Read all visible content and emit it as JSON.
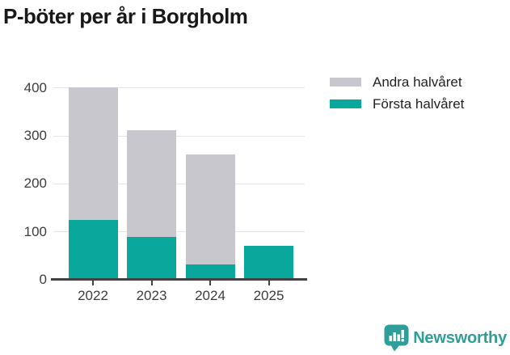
{
  "title": "P-böter per år i Borgholm",
  "chart_data": {
    "type": "bar",
    "stacked": true,
    "title": "P-böter per år i Borgholm",
    "categories": [
      "2022",
      "2023",
      "2024",
      "2025"
    ],
    "series": [
      {
        "name": "Första halvåret",
        "color": "#0aa79c",
        "values": [
          125,
          90,
          32,
          71
        ]
      },
      {
        "name": "Andra halvåret",
        "color": "#c9c7ce",
        "values": [
          276,
          222,
          229,
          0
        ]
      }
    ],
    "totals": [
      401,
      312,
      261,
      71
    ],
    "xlabel": "",
    "ylabel": "",
    "ylim": [
      0,
      415
    ],
    "yticks": [
      0,
      100,
      200,
      300,
      400
    ],
    "grid": true,
    "legend_position": "top-right"
  },
  "legend": {
    "items": [
      {
        "label": "Andra halvåret",
        "color": "#c9c7ce"
      },
      {
        "label": "Första halvåret",
        "color": "#0aa79c"
      }
    ]
  },
  "branding": {
    "name": "Newsworthy",
    "color": "#2f9e98",
    "icon": "newsworthy-chart-bubble"
  },
  "colors": {
    "axis": "#424242",
    "grid": "#e4e4e4",
    "tick_text": "#3d3d3d",
    "title_text": "#191919"
  }
}
